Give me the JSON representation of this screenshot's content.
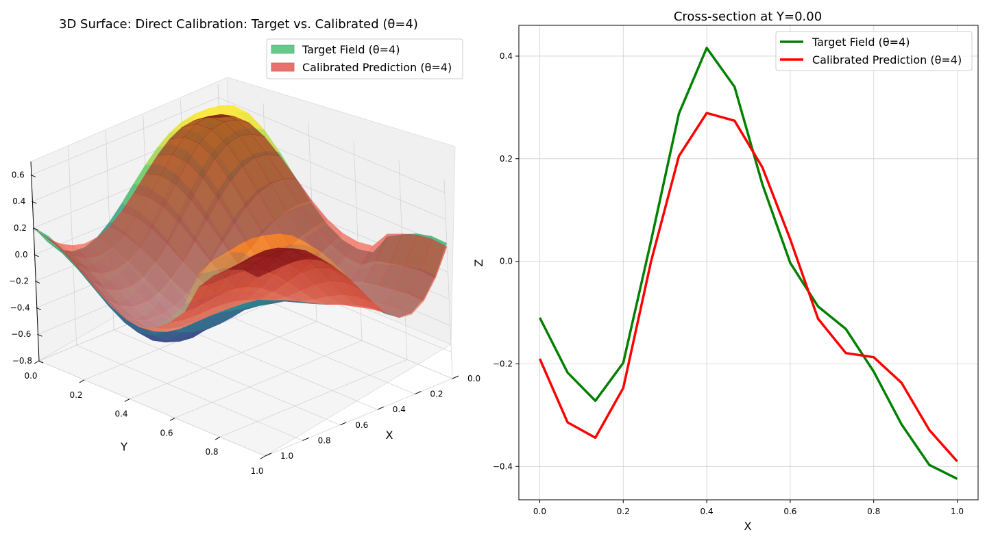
{
  "chart_data": [
    {
      "type": "surface3d",
      "title": "3D Surface: Direct Calibration: Target vs. Calibrated (θ=4)",
      "xlabel": "X",
      "ylabel": "Y",
      "zlabel": "",
      "xlim": [
        0,
        1
      ],
      "ylim": [
        0,
        1
      ],
      "zlim": [
        -0.8,
        0.7
      ],
      "x_ticks": [
        "0.0",
        "0.2",
        "0.4",
        "0.6",
        "0.8",
        "1.0"
      ],
      "y_ticks": [
        "0.0",
        "0.2",
        "0.4",
        "0.6",
        "0.8",
        "1.0"
      ],
      "z_ticks": [
        "−0.8",
        "−0.6",
        "−0.4",
        "−0.2",
        "0.0",
        "0.2",
        "0.4",
        "0.6"
      ],
      "grid": true,
      "legend_position": "top-right",
      "series": [
        {
          "name": "Target Field (θ=4)",
          "legend_color": "#66c98a",
          "colormap": "viridis"
        },
        {
          "name": "Calibrated Prediction (θ=4)",
          "legend_color": "#e8736c",
          "colormap": "reds"
        }
      ]
    },
    {
      "type": "line",
      "title": "Cross-section at Y=0.00",
      "xlabel": "X",
      "ylabel": "Z",
      "xlim": [
        -0.05,
        1.05
      ],
      "ylim": [
        -0.465,
        0.46
      ],
      "x_ticks": [
        "0.0",
        "0.2",
        "0.4",
        "0.6",
        "0.8",
        "1.0"
      ],
      "y_ticks": [
        "−0.4",
        "−0.2",
        "0.0",
        "0.2",
        "0.4"
      ],
      "grid": true,
      "legend_position": "top-right",
      "x": [
        0.0,
        0.0667,
        0.1333,
        0.2,
        0.2667,
        0.3333,
        0.4,
        0.4667,
        0.5333,
        0.6,
        0.6667,
        0.7333,
        0.8,
        0.8667,
        0.9333,
        1.0
      ],
      "series": [
        {
          "name": "Target Field (θ=4)",
          "color": "#008000",
          "values": [
            -0.11,
            -0.217,
            -0.272,
            -0.198,
            0.04,
            0.288,
            0.416,
            0.34,
            0.15,
            -0.003,
            -0.088,
            -0.132,
            -0.215,
            -0.318,
            -0.397,
            -0.424
          ]
        },
        {
          "name": "Calibrated Prediction (θ=4)",
          "color": "#ff0000",
          "values": [
            -0.19,
            -0.314,
            -0.344,
            -0.247,
            0.0,
            0.205,
            0.289,
            0.274,
            0.183,
            0.043,
            -0.112,
            -0.179,
            -0.187,
            -0.237,
            -0.329,
            -0.39
          ]
        }
      ]
    }
  ]
}
